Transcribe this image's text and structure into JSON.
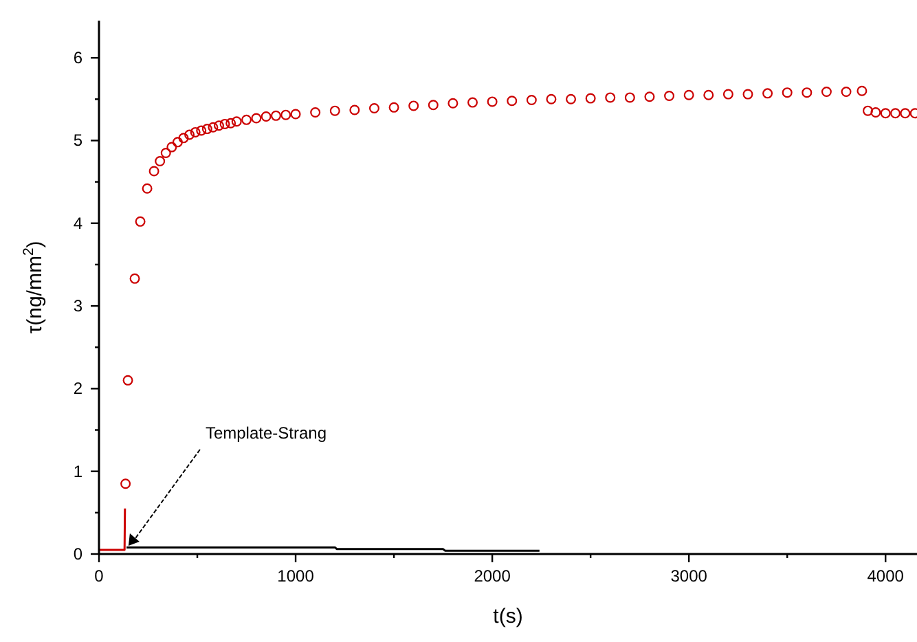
{
  "chart_data": {
    "type": "scatter",
    "xlabel": "t(s)",
    "ylabel": "τ(ng/mm$^{2}$)",
    "xlim": [
      0,
      4160
    ],
    "ylim": [
      0,
      6.45
    ],
    "xticks": [
      0,
      {
        "value": 500,
        "label": null
      },
      1000,
      {
        "value": 1500,
        "label": null
      },
      2000,
      {
        "value": 2500,
        "label": null
      },
      3000,
      {
        "value": 3500,
        "label": null
      },
      4000
    ],
    "yticks": [
      0,
      {
        "value": 0.5,
        "label": null
      },
      1,
      {
        "value": 1.5,
        "label": null
      },
      2,
      {
        "value": 2.5,
        "label": null
      },
      3,
      {
        "value": 3.5,
        "label": null
      },
      4,
      {
        "value": 4.5,
        "label": null
      },
      5,
      {
        "value": 5.5,
        "label": null
      },
      6
    ],
    "grid": false,
    "series": [
      {
        "type": "line",
        "color": "#cc0000",
        "marker": "none",
        "x": [
          0,
          130,
          132
        ],
        "values": [
          0.05,
          0.05,
          0.55
        ]
      },
      {
        "type": "line",
        "color": "#000000",
        "marker": "none",
        "x": [
          140,
          1200,
          1210,
          1750,
          1760,
          2240
        ],
        "values": [
          0.08,
          0.08,
          0.06,
          0.06,
          0.04,
          0.04
        ]
      },
      {
        "color": "#cc0000",
        "marker": "circle",
        "x": [
          135,
          147,
          182,
          210,
          245,
          280,
          310,
          340,
          370,
          400,
          430,
          460,
          490,
          520,
          550,
          580,
          610,
          640,
          670,
          700,
          750,
          800,
          850,
          900,
          950,
          1000,
          1100,
          1200,
          1300,
          1400,
          1500,
          1600,
          1700,
          1800,
          1900,
          2000,
          2100,
          2200,
          2300,
          2400,
          2500,
          2600,
          2700,
          2800,
          2900,
          3000,
          3100,
          3200,
          3300,
          3400,
          3500,
          3600,
          3700,
          3800,
          3880,
          3910,
          3950,
          4000,
          4050,
          4100,
          4150
        ],
        "values": [
          0.85,
          2.1,
          3.33,
          4.02,
          4.42,
          4.63,
          4.75,
          4.85,
          4.92,
          4.98,
          5.03,
          5.07,
          5.1,
          5.12,
          5.14,
          5.16,
          5.18,
          5.2,
          5.21,
          5.23,
          5.25,
          5.27,
          5.29,
          5.3,
          5.31,
          5.32,
          5.34,
          5.36,
          5.37,
          5.39,
          5.4,
          5.42,
          5.43,
          5.45,
          5.46,
          5.47,
          5.48,
          5.49,
          5.5,
          5.5,
          5.51,
          5.52,
          5.52,
          5.53,
          5.54,
          5.55,
          5.55,
          5.56,
          5.56,
          5.57,
          5.58,
          5.58,
          5.59,
          5.59,
          5.6,
          5.36,
          5.34,
          5.33,
          5.33,
          5.33,
          5.33
        ]
      }
    ],
    "annotations": [
      {
        "text": "Template-Strang",
        "x": 150,
        "y": 0.1
      }
    ]
  }
}
